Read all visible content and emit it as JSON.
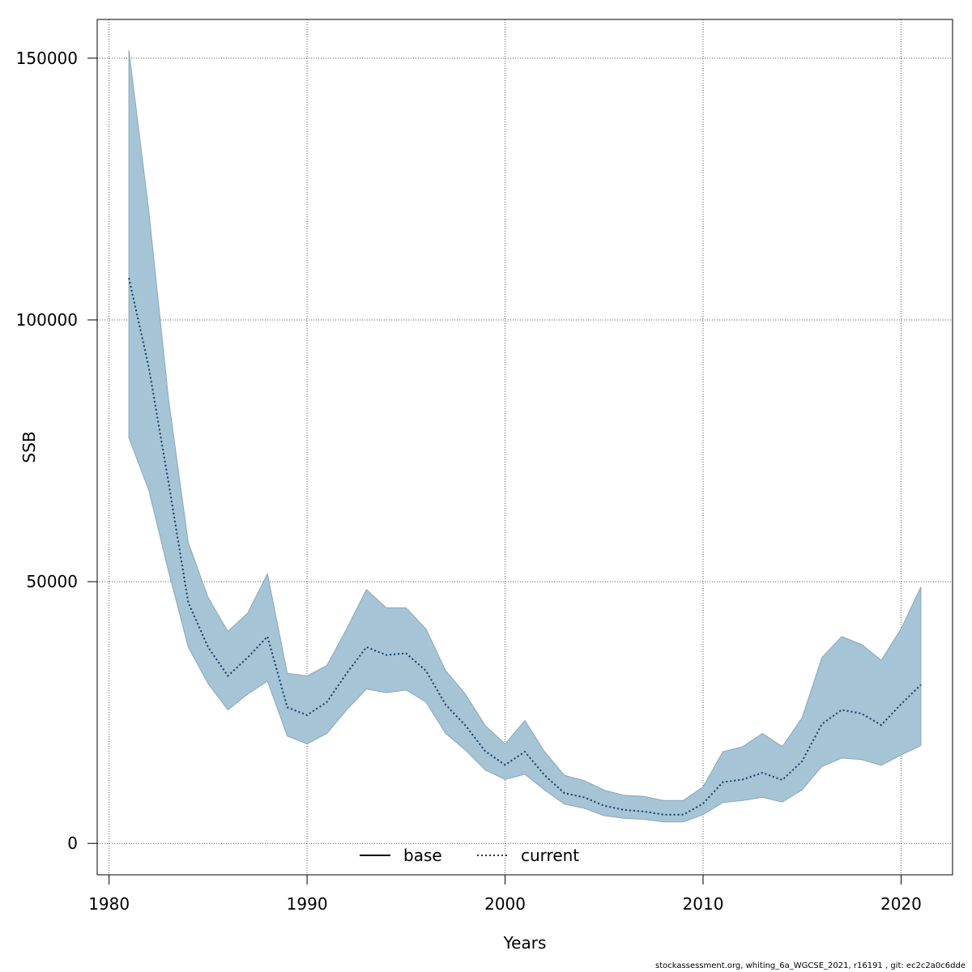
{
  "chart_data": {
    "type": "area",
    "xlabel": "Years",
    "ylabel": "SSB",
    "xlim": [
      1979.4,
      2022.6
    ],
    "ylim": [
      -6000,
      157400
    ],
    "x_ticks": [
      1980,
      1990,
      2000,
      2010,
      2020
    ],
    "y_ticks": [
      0,
      50000,
      100000,
      150000
    ],
    "grid": true,
    "legend_position": "bottom-center",
    "colors": {
      "band": "#a5c4d5",
      "band_edge": "#8aa9b9",
      "base": "#000000",
      "current": "#0b3c64",
      "grid": "#555555"
    },
    "legend": [
      {
        "label": "base",
        "style": "solid"
      },
      {
        "label": "current",
        "style": "dotted"
      }
    ],
    "x": [
      1981,
      1982,
      1983,
      1984,
      1985,
      1986,
      1987,
      1988,
      1989,
      1990,
      1991,
      1992,
      1993,
      1994,
      1995,
      1996,
      1997,
      1998,
      1999,
      2000,
      2001,
      2002,
      2003,
      2004,
      2005,
      2006,
      2007,
      2008,
      2009,
      2010,
      2011,
      2012,
      2013,
      2014,
      2015,
      2016,
      2017,
      2018,
      2019,
      2020,
      2021
    ],
    "series": [
      {
        "name": "base",
        "values": [
          108000,
          91000,
          69000,
          46000,
          37500,
          32000,
          35500,
          39500,
          26000,
          24500,
          27000,
          32500,
          37500,
          36000,
          36300,
          33000,
          26500,
          22500,
          17600,
          15000,
          17500,
          13000,
          9600,
          8800,
          7200,
          6400,
          6100,
          5500,
          5500,
          7600,
          11700,
          12200,
          13500,
          12100,
          15700,
          22800,
          25500,
          24800,
          22600,
          26600,
          30300
        ]
      },
      {
        "name": "current",
        "values": [
          108000,
          91000,
          69000,
          46000,
          37500,
          32000,
          35500,
          39500,
          26000,
          24500,
          27000,
          32500,
          37500,
          36000,
          36300,
          33000,
          26500,
          22500,
          17600,
          15000,
          17500,
          13000,
          9600,
          8800,
          7200,
          6400,
          6100,
          5500,
          5500,
          7600,
          11700,
          12200,
          13500,
          12100,
          15700,
          22800,
          25500,
          24800,
          22600,
          26600,
          30300
        ]
      }
    ],
    "band_upper": [
      151500,
      121000,
      85000,
      57500,
      47000,
      40500,
      44000,
      51500,
      32500,
      32000,
      34000,
      41000,
      48500,
      45000,
      45000,
      41000,
      33000,
      28500,
      22500,
      19000,
      23500,
      17500,
      13000,
      12000,
      10200,
      9200,
      9000,
      8200,
      8200,
      10800,
      17500,
      18500,
      21000,
      18500,
      24000,
      35500,
      39500,
      38000,
      35000,
      41000,
      49000
    ],
    "band_lower": [
      77500,
      67500,
      52000,
      37500,
      30500,
      25500,
      28500,
      31000,
      20500,
      19000,
      21000,
      25500,
      29500,
      28800,
      29300,
      27000,
      21000,
      17800,
      14000,
      12200,
      13200,
      10200,
      7500,
      6700,
      5300,
      4800,
      4600,
      4100,
      4100,
      5500,
      7800,
      8200,
      8800,
      7900,
      10200,
      14700,
      16300,
      16000,
      14900,
      16900,
      18700
    ]
  },
  "footer": {
    "text": "stockassessment.org, whiting_6a_WGCSE_2021, r16191 , git: ec2c2a0c6dde"
  }
}
